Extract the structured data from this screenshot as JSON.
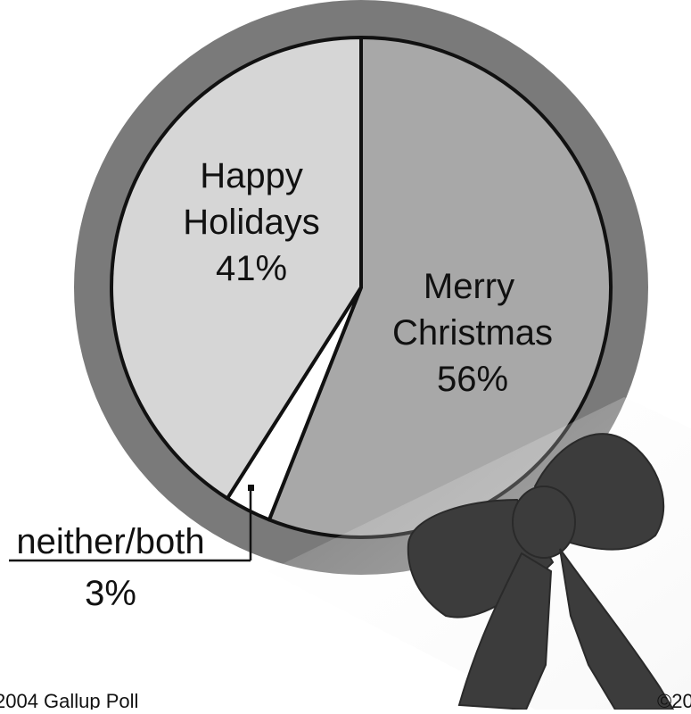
{
  "chart_data": {
    "type": "pie",
    "slices": [
      {
        "label_lines": [
          "Merry",
          "Christmas"
        ],
        "value": 56,
        "value_label": "56%",
        "color": "#a8a8a8"
      },
      {
        "label_lines": [
          "neither/both"
        ],
        "value": 3,
        "value_label": "3%",
        "color": "#ffffff"
      },
      {
        "label_lines": [
          "Happy",
          "Holidays"
        ],
        "value": 41,
        "value_label": "41%",
        "color": "#d6d6d6"
      }
    ],
    "ring_color": "#7a7a7a",
    "outline_color": "#111111",
    "legend": "none",
    "source_left": "2004 Gallup Poll",
    "source_right": "©20"
  }
}
